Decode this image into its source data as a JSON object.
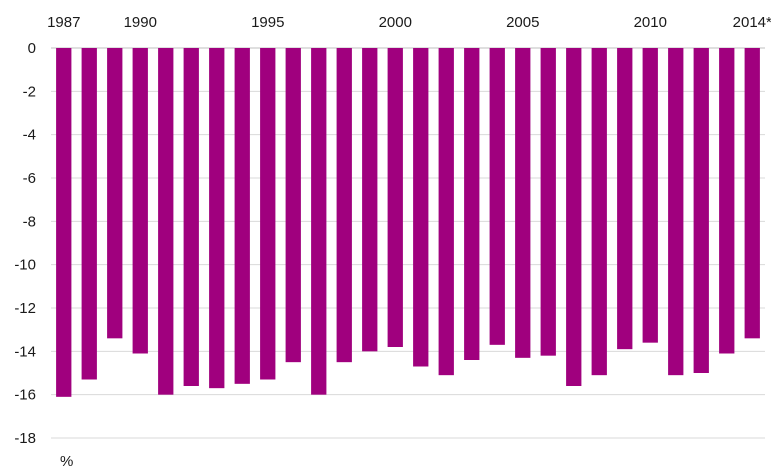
{
  "chart_data": {
    "type": "bar",
    "categories": [
      "1987",
      "1988",
      "1989",
      "1990",
      "1991",
      "1992",
      "1993",
      "1994",
      "1995",
      "1996",
      "1997",
      "1998",
      "1999",
      "2000",
      "2001",
      "2002",
      "2003",
      "2004",
      "2005",
      "2006",
      "2007",
      "2008",
      "2009",
      "2010",
      "2011",
      "2012",
      "2013",
      "2014*"
    ],
    "x_tick_labels": {
      "1987": "1987",
      "1990": "1990",
      "1995": "1995",
      "2000": "2000",
      "2005": "2005",
      "2010": "2010",
      "2014*": "2014*"
    },
    "values": [
      -16.1,
      -15.3,
      -13.4,
      -14.1,
      -16.0,
      -15.6,
      -15.7,
      -15.5,
      -15.3,
      -14.5,
      -16.0,
      -14.5,
      -14.0,
      -13.8,
      -14.7,
      -15.1,
      -14.4,
      -13.7,
      -14.3,
      -14.2,
      -15.6,
      -15.1,
      -13.9,
      -13.6,
      -15.1,
      -15.0,
      -14.1,
      -13.4
    ],
    "ylim": [
      -18,
      0
    ],
    "y_ticks": [
      0,
      -2,
      -4,
      -6,
      -8,
      -10,
      -12,
      -14,
      -16,
      -18
    ],
    "ylabel": "%",
    "title": "",
    "xlabel": "",
    "x_axis_position": "top",
    "grid": true,
    "bar_color": "#a0007e"
  }
}
